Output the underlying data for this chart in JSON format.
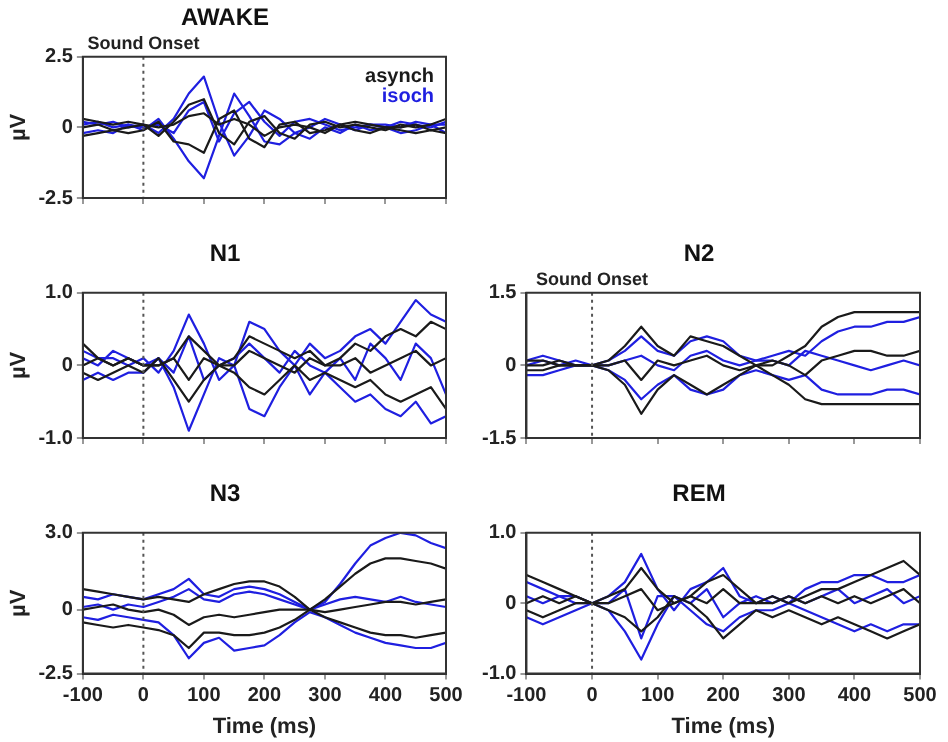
{
  "chart_data": [
    {
      "type": "line",
      "title": "AWAKE",
      "ylabel": "µV",
      "legend": "top right",
      "tick_labels": "y",
      "grid": false,
      "x": [
        -100,
        -75,
        -50,
        -25,
        0,
        25,
        50,
        75,
        100,
        125,
        150,
        175,
        200,
        225,
        250,
        275,
        300,
        325,
        350,
        375,
        400,
        425,
        450,
        475,
        500
      ],
      "xlim": [
        -100,
        500
      ],
      "xticks": [
        -100,
        0,
        100,
        200,
        300,
        400,
        500
      ],
      "ylim": [
        -2.5,
        2.5
      ],
      "yticks": [
        -2.5,
        0,
        2.5
      ],
      "ref_lines": [
        {
          "axis": "x",
          "value": 0,
          "label": "Sound Onset",
          "color": "#555555",
          "line_style": "dotted"
        }
      ],
      "series": [
        {
          "name": "asynch",
          "color": "#1a1a1a",
          "values": [
            0.3,
            0.2,
            0.1,
            0.2,
            0.1,
            -0.3,
            0.2,
            0.8,
            1.0,
            -0.2,
            -0.6,
            0.2,
            0.4,
            -0.2,
            -0.4,
            0.1,
            0.2,
            0.0,
            0.1,
            0.0,
            -0.1,
            0.1,
            0.0,
            0.1,
            0.3
          ]
        },
        {
          "color": "#1a1a1a",
          "values": [
            -0.3,
            -0.2,
            -0.1,
            -0.2,
            -0.1,
            0.2,
            -0.5,
            -0.6,
            -0.9,
            0.3,
            0.6,
            -0.4,
            -0.7,
            0.1,
            0.2,
            -0.2,
            -0.1,
            0.1,
            -0.1,
            -0.2,
            0.0,
            -0.1,
            -0.2,
            -0.1,
            -0.2
          ]
        },
        {
          "color": "#1a1a1a",
          "values": [
            0.0,
            0.1,
            -0.1,
            0.0,
            0.1,
            0.0,
            0.1,
            0.4,
            0.5,
            0.1,
            0.3,
            0.1,
            -0.3,
            0.0,
            0.1,
            0.0,
            -0.2,
            0.1,
            0.2,
            0.1,
            0.0,
            0.0,
            0.1,
            -0.1,
            0.0
          ]
        },
        {
          "name": "isoch",
          "color": "#1f1fe0",
          "values": [
            0.2,
            0.1,
            0.2,
            0.0,
            0.1,
            -0.2,
            0.3,
            1.2,
            1.8,
            0.2,
            -1.0,
            -0.3,
            0.6,
            0.3,
            -0.2,
            0.0,
            0.3,
            0.1,
            -0.1,
            0.1,
            0.0,
            0.2,
            0.1,
            0.0,
            0.2
          ]
        },
        {
          "color": "#1f1fe0",
          "values": [
            -0.2,
            -0.1,
            -0.2,
            0.1,
            -0.1,
            0.3,
            -0.4,
            -1.2,
            -1.8,
            -0.3,
            1.2,
            0.4,
            -0.5,
            -0.6,
            -0.2,
            -0.4,
            0.0,
            -0.2,
            0.1,
            -0.1,
            0.0,
            -0.2,
            -0.1,
            0.1,
            -0.2
          ]
        },
        {
          "color": "#1f1fe0",
          "values": [
            0.1,
            0.2,
            0.0,
            0.1,
            0.0,
            0.1,
            -0.2,
            0.6,
            0.9,
            -0.5,
            0.5,
            0.9,
            0.2,
            -0.3,
            0.2,
            0.3,
            0.1,
            -0.1,
            0.0,
            0.1,
            0.1,
            0.0,
            0.2,
            0.1,
            0.1
          ]
        }
      ]
    },
    {
      "type": "line",
      "title": "N1",
      "ylabel": "µV",
      "tick_labels": "y",
      "grid": false,
      "x": [
        -100,
        -75,
        -50,
        -25,
        0,
        25,
        50,
        75,
        100,
        125,
        150,
        175,
        200,
        225,
        250,
        275,
        300,
        325,
        350,
        375,
        400,
        425,
        450,
        475,
        500
      ],
      "xlim": [
        -100,
        500
      ],
      "xticks": [
        -100,
        0,
        100,
        200,
        300,
        400,
        500
      ],
      "ylim": [
        -1,
        1
      ],
      "yticks": [
        {
          "value": -1,
          "label": "-1.0"
        },
        0,
        {
          "value": 1,
          "label": "1.0"
        }
      ],
      "ref_lines": [
        {
          "axis": "x",
          "value": 0,
          "label": null,
          "color": "#555555",
          "line_style": "dotted"
        }
      ],
      "series": [
        {
          "color": "#1a1a1a",
          "values": [
            0.3,
            0.1,
            0.0,
            0.1,
            0.0,
            0.0,
            0.1,
            0.4,
            0.2,
            0.0,
            0.1,
            0.4,
            0.3,
            0.2,
            0.1,
            0.2,
            0.0,
            0.1,
            0.3,
            0.2,
            0.4,
            0.5,
            0.4,
            0.6,
            0.5
          ]
        },
        {
          "color": "#1a1a1a",
          "values": [
            -0.1,
            -0.2,
            -0.1,
            0.0,
            -0.1,
            0.1,
            -0.2,
            -0.5,
            -0.2,
            0.0,
            -0.1,
            -0.3,
            -0.4,
            -0.2,
            0.0,
            -0.2,
            -0.1,
            -0.2,
            -0.3,
            -0.2,
            -0.4,
            -0.5,
            -0.4,
            -0.3,
            -0.6
          ]
        },
        {
          "color": "#1a1a1a",
          "values": [
            0.0,
            0.1,
            0.0,
            0.1,
            0.0,
            0.0,
            0.1,
            -0.2,
            0.1,
            0.0,
            0.0,
            0.2,
            0.1,
            0.0,
            -0.1,
            0.1,
            0.0,
            0.0,
            0.1,
            -0.1,
            0.0,
            0.1,
            0.2,
            0.0,
            0.1
          ]
        },
        {
          "color": "#1f1fe0",
          "values": [
            0.2,
            0.1,
            0.1,
            0.0,
            0.1,
            -0.1,
            0.2,
            0.7,
            0.3,
            -0.2,
            0.0,
            0.6,
            0.5,
            0.2,
            0.0,
            0.3,
            0.1,
            0.2,
            0.4,
            0.5,
            0.3,
            0.6,
            0.9,
            0.7,
            0.6
          ]
        },
        {
          "color": "#1f1fe0",
          "values": [
            -0.2,
            -0.1,
            -0.2,
            -0.1,
            -0.1,
            0.1,
            -0.3,
            -0.9,
            -0.4,
            0.1,
            0.0,
            -0.6,
            -0.7,
            -0.3,
            0.0,
            -0.4,
            -0.1,
            -0.3,
            -0.5,
            -0.4,
            -0.6,
            -0.7,
            -0.5,
            -0.8,
            -0.7
          ]
        },
        {
          "color": "#1f1fe0",
          "values": [
            0.1,
            0.0,
            0.2,
            0.1,
            0.0,
            0.1,
            -0.1,
            0.4,
            -0.2,
            0.0,
            0.1,
            0.3,
            0.1,
            -0.1,
            0.2,
            0.0,
            -0.1,
            0.1,
            -0.2,
            0.3,
            0.1,
            -0.2,
            0.3,
            0.1,
            -0.4
          ]
        }
      ]
    },
    {
      "type": "line",
      "title": "N2",
      "tick_labels": "y",
      "grid": false,
      "x": [
        -100,
        -75,
        -50,
        -25,
        0,
        25,
        50,
        75,
        100,
        125,
        150,
        175,
        200,
        225,
        250,
        275,
        300,
        325,
        350,
        375,
        400,
        425,
        450,
        475,
        500
      ],
      "xlim": [
        -100,
        500
      ],
      "xticks": [
        -100,
        0,
        100,
        200,
        300,
        400,
        500
      ],
      "ylim": [
        -1.5,
        1.5
      ],
      "yticks": [
        -1.5,
        0,
        1.5
      ],
      "ref_lines": [
        {
          "axis": "x",
          "value": 0,
          "label": "Sound Onset",
          "color": "#555555",
          "line_style": "dotted"
        }
      ],
      "series": [
        {
          "color": "#1a1a1a",
          "values": [
            0.1,
            0.1,
            0.0,
            0.0,
            0.0,
            0.1,
            0.4,
            0.8,
            0.4,
            0.2,
            0.6,
            0.5,
            0.4,
            0.2,
            0.0,
            0.0,
            0.2,
            0.4,
            0.8,
            1.0,
            1.1,
            1.1,
            1.1,
            1.1,
            1.1
          ]
        },
        {
          "color": "#1a1a1a",
          "values": [
            -0.1,
            -0.1,
            0.0,
            0.0,
            0.0,
            -0.1,
            -0.4,
            -1.0,
            -0.5,
            -0.2,
            -0.4,
            -0.6,
            -0.4,
            -0.2,
            0.0,
            -0.2,
            -0.4,
            -0.7,
            -0.8,
            -0.8,
            -0.8,
            -0.8,
            -0.8,
            -0.8,
            -0.8
          ]
        },
        {
          "color": "#1a1a1a",
          "values": [
            0.0,
            0.0,
            0.1,
            0.0,
            0.0,
            0.0,
            0.1,
            -0.3,
            0.1,
            0.0,
            0.1,
            0.2,
            0.0,
            -0.1,
            0.0,
            0.1,
            0.0,
            -0.2,
            0.1,
            0.2,
            0.3,
            0.3,
            0.2,
            0.2,
            0.3
          ]
        },
        {
          "color": "#1f1fe0",
          "values": [
            0.1,
            0.2,
            0.1,
            0.0,
            0.0,
            0.1,
            0.3,
            0.6,
            0.3,
            0.2,
            0.5,
            0.6,
            0.5,
            0.2,
            0.1,
            0.2,
            0.3,
            0.2,
            0.5,
            0.7,
            0.8,
            0.8,
            0.9,
            0.9,
            1.0
          ]
        },
        {
          "color": "#1f1fe0",
          "values": [
            -0.2,
            -0.2,
            -0.1,
            0.0,
            0.0,
            -0.1,
            -0.3,
            -0.7,
            -0.4,
            -0.2,
            -0.5,
            -0.6,
            -0.5,
            -0.2,
            -0.1,
            -0.2,
            -0.3,
            -0.2,
            -0.5,
            -0.6,
            -0.6,
            -0.6,
            -0.5,
            -0.5,
            -0.6
          ]
        },
        {
          "color": "#1f1fe0",
          "values": [
            0.0,
            0.1,
            0.0,
            0.1,
            0.0,
            0.0,
            0.1,
            0.2,
            0.0,
            -0.1,
            0.2,
            0.3,
            0.1,
            0.0,
            0.1,
            0.1,
            0.0,
            0.3,
            0.2,
            0.1,
            0.0,
            -0.1,
            0.0,
            0.1,
            0.0
          ]
        }
      ]
    },
    {
      "type": "line",
      "title": "N3",
      "xlabel": "Time (ms)",
      "ylabel": "µV",
      "grid": false,
      "x": [
        -100,
        -75,
        -50,
        -25,
        0,
        25,
        50,
        75,
        100,
        125,
        150,
        175,
        200,
        225,
        250,
        275,
        300,
        325,
        350,
        375,
        400,
        425,
        450,
        475,
        500
      ],
      "xlim": [
        -100,
        500
      ],
      "xticks": [
        -100,
        0,
        100,
        200,
        300,
        400,
        500
      ],
      "ylim": [
        -2.5,
        3
      ],
      "yticks": [
        -2.5,
        0,
        {
          "value": 3,
          "label": "3.0"
        }
      ],
      "ref_lines": [
        {
          "axis": "x",
          "value": 0,
          "label": null,
          "color": "#555555",
          "line_style": "dotted"
        }
      ],
      "series": [
        {
          "color": "#1a1a1a",
          "values": [
            0.8,
            0.7,
            0.6,
            0.5,
            0.4,
            0.5,
            0.4,
            0.3,
            0.6,
            0.8,
            1.0,
            1.1,
            1.1,
            0.9,
            0.5,
            0.0,
            0.4,
            0.9,
            1.4,
            1.8,
            2.0,
            2.0,
            1.9,
            1.8,
            1.6
          ]
        },
        {
          "color": "#1a1a1a",
          "values": [
            -0.5,
            -0.6,
            -0.7,
            -0.6,
            -0.7,
            -0.8,
            -1.0,
            -1.5,
            -0.9,
            -0.9,
            -1.0,
            -1.0,
            -0.9,
            -0.7,
            -0.4,
            0.0,
            -0.3,
            -0.5,
            -0.7,
            -0.9,
            -1.0,
            -1.0,
            -1.1,
            -1.0,
            -0.9
          ]
        },
        {
          "color": "#1a1a1a",
          "values": [
            0.0,
            0.1,
            0.2,
            0.0,
            -0.1,
            0.0,
            -0.2,
            -0.6,
            -0.3,
            -0.2,
            -0.3,
            -0.2,
            -0.1,
            0.0,
            0.0,
            0.0,
            -0.1,
            0.0,
            0.1,
            0.2,
            0.3,
            0.3,
            0.2,
            0.3,
            0.4
          ]
        },
        {
          "color": "#1f1fe0",
          "values": [
            0.5,
            0.4,
            0.6,
            0.5,
            0.4,
            0.6,
            0.8,
            1.2,
            0.6,
            0.5,
            0.8,
            0.9,
            0.8,
            0.6,
            0.3,
            0.0,
            0.3,
            1.0,
            1.8,
            2.5,
            2.8,
            3.0,
            2.9,
            2.6,
            2.4
          ]
        },
        {
          "color": "#1f1fe0",
          "values": [
            -0.3,
            -0.4,
            -0.2,
            -0.3,
            -0.4,
            -0.5,
            -1.0,
            -1.9,
            -1.3,
            -1.1,
            -1.6,
            -1.5,
            -1.4,
            -1.0,
            -0.5,
            -0.1,
            -0.3,
            -0.6,
            -0.9,
            -1.1,
            -1.3,
            -1.4,
            -1.5,
            -1.5,
            -1.3
          ]
        },
        {
          "color": "#1f1fe0",
          "values": [
            0.1,
            0.2,
            0.0,
            0.2,
            0.1,
            0.3,
            0.5,
            0.8,
            0.4,
            0.3,
            0.6,
            0.7,
            0.6,
            0.4,
            0.2,
            0.0,
            0.2,
            0.4,
            0.5,
            0.4,
            0.3,
            0.5,
            0.3,
            0.2,
            0.1
          ]
        }
      ]
    },
    {
      "type": "line",
      "title": "REM",
      "xlabel": "Time (ms)",
      "grid": false,
      "x": [
        -100,
        -75,
        -50,
        -25,
        0,
        25,
        50,
        75,
        100,
        125,
        150,
        175,
        200,
        225,
        250,
        275,
        300,
        325,
        350,
        375,
        400,
        425,
        450,
        475,
        500
      ],
      "xlim": [
        -100,
        500
      ],
      "xticks": [
        -100,
        0,
        100,
        200,
        300,
        400,
        500
      ],
      "ylim": [
        -1,
        1
      ],
      "yticks": [
        {
          "value": -1,
          "label": "-1.0"
        },
        0,
        {
          "value": 1,
          "label": "1.0"
        }
      ],
      "ref_lines": [
        {
          "axis": "x",
          "value": 0,
          "label": null,
          "color": "#555555",
          "line_style": "dotted"
        }
      ],
      "series": [
        {
          "color": "#1a1a1a",
          "values": [
            0.4,
            0.3,
            0.2,
            0.1,
            0.0,
            0.1,
            0.2,
            0.5,
            0.2,
            0.0,
            0.1,
            0.3,
            0.4,
            0.2,
            0.0,
            0.1,
            0.0,
            0.1,
            0.2,
            0.2,
            0.3,
            0.4,
            0.5,
            0.6,
            0.4
          ]
        },
        {
          "color": "#1a1a1a",
          "values": [
            -0.1,
            -0.2,
            -0.1,
            0.0,
            0.0,
            -0.1,
            -0.2,
            -0.4,
            -0.2,
            0.1,
            0.0,
            -0.2,
            -0.5,
            -0.3,
            -0.1,
            -0.2,
            -0.1,
            -0.2,
            -0.3,
            -0.2,
            -0.3,
            -0.4,
            -0.5,
            -0.4,
            -0.3
          ]
        },
        {
          "color": "#1a1a1a",
          "values": [
            0.0,
            0.1,
            0.0,
            0.1,
            0.0,
            0.0,
            0.1,
            0.2,
            -0.1,
            0.0,
            0.1,
            0.0,
            0.2,
            0.0,
            0.0,
            0.0,
            0.1,
            0.0,
            0.1,
            0.0,
            0.1,
            0.0,
            0.1,
            0.2,
            0.0
          ]
        },
        {
          "color": "#1f1fe0",
          "values": [
            0.3,
            0.2,
            0.1,
            0.1,
            0.0,
            0.1,
            0.3,
            0.7,
            0.2,
            -0.1,
            0.2,
            0.3,
            0.5,
            0.1,
            0.0,
            0.1,
            0.0,
            0.2,
            0.3,
            0.3,
            0.4,
            0.4,
            0.3,
            0.3,
            0.4
          ]
        },
        {
          "color": "#1f1fe0",
          "values": [
            -0.2,
            -0.3,
            -0.2,
            -0.1,
            0.0,
            -0.1,
            -0.4,
            -0.8,
            -0.3,
            0.1,
            -0.1,
            -0.3,
            -0.4,
            -0.2,
            -0.1,
            -0.1,
            0.0,
            -0.1,
            -0.2,
            -0.3,
            -0.4,
            -0.3,
            -0.4,
            -0.3,
            -0.3
          ]
        },
        {
          "color": "#1f1fe0",
          "values": [
            0.1,
            0.0,
            0.1,
            0.0,
            0.0,
            0.0,
            0.2,
            -0.5,
            0.1,
            0.1,
            0.0,
            0.2,
            -0.2,
            0.0,
            0.1,
            0.0,
            0.1,
            0.0,
            0.1,
            0.2,
            0.0,
            0.1,
            0.2,
            0.0,
            0.1
          ]
        }
      ]
    }
  ]
}
